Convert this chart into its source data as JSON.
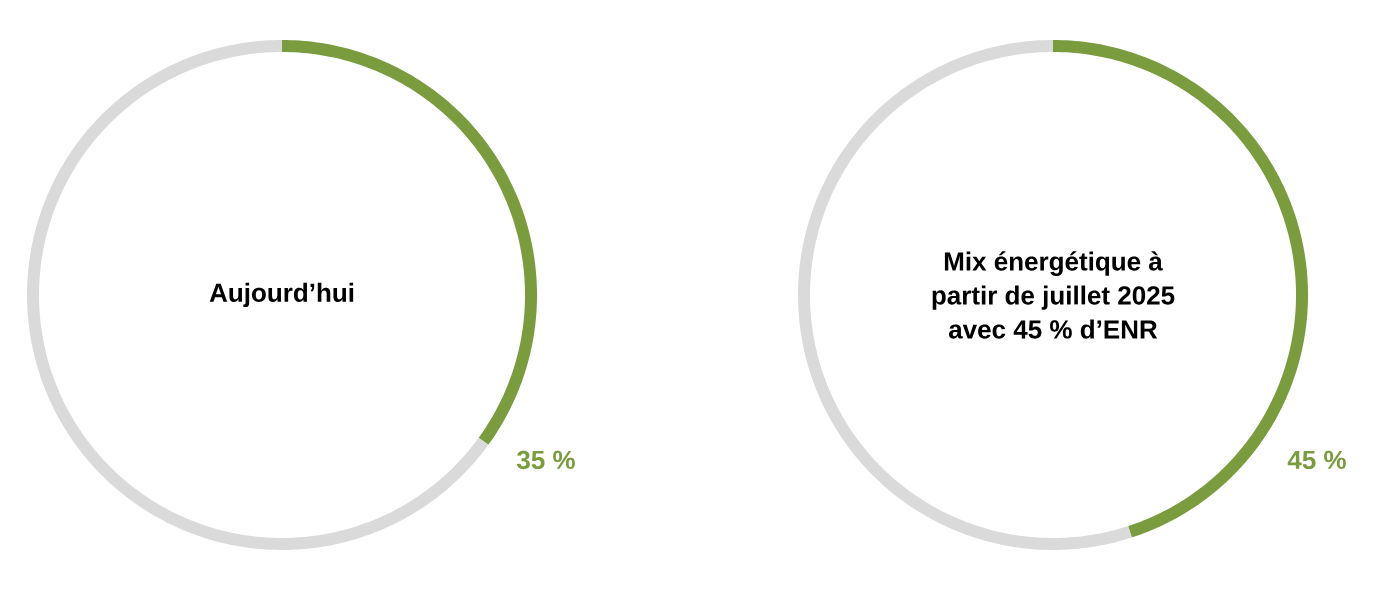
{
  "chart_data": [
    {
      "type": "donut",
      "title": "Aujourd’hui",
      "categories": [
        null,
        null
      ],
      "values": [
        35,
        65
      ],
      "colors": [
        "#7a9c3f",
        "#dadada"
      ],
      "value_labels": [
        "35 %",
        null
      ]
    },
    {
      "type": "donut",
      "title": "Mix énergétique à partir de juillet 2025 avec 45 % d’ENR",
      "categories": [
        null,
        null
      ],
      "values": [
        45,
        55
      ],
      "colors": [
        "#7a9c3f",
        "#dadada"
      ],
      "value_labels": [
        "45 %",
        null
      ]
    }
  ]
}
